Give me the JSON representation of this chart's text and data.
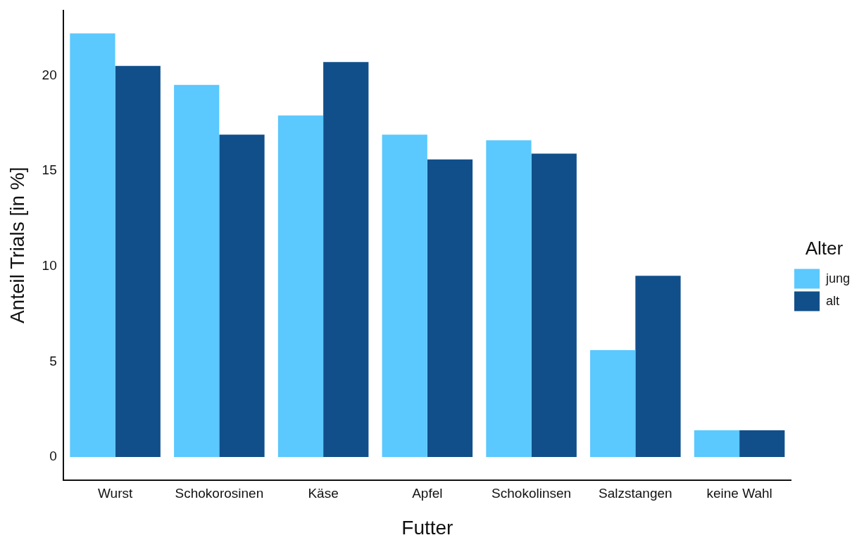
{
  "chart_data": {
    "type": "bar",
    "xlabel": "Futter",
    "ylabel": "Anteil Trials [in %]",
    "legend_title": "Alter",
    "categories": [
      "Wurst",
      "Schokorosinen",
      "Käse",
      "Apfel",
      "Schokolinsen",
      "Salzstangen",
      "keine Wahl"
    ],
    "series": [
      {
        "name": "jung",
        "color": "#5bc8fe",
        "values": [
          22.2,
          19.5,
          17.9,
          16.9,
          16.6,
          5.6,
          1.4
        ]
      },
      {
        "name": "alt",
        "color": "#114f8a",
        "values": [
          20.5,
          16.9,
          20.7,
          15.6,
          15.9,
          9.5,
          1.4
        ]
      }
    ],
    "ylim": [
      -1.2,
      23.4
    ],
    "yticks": [
      0,
      5,
      10,
      15,
      20
    ],
    "grid": false,
    "legend": "right"
  }
}
